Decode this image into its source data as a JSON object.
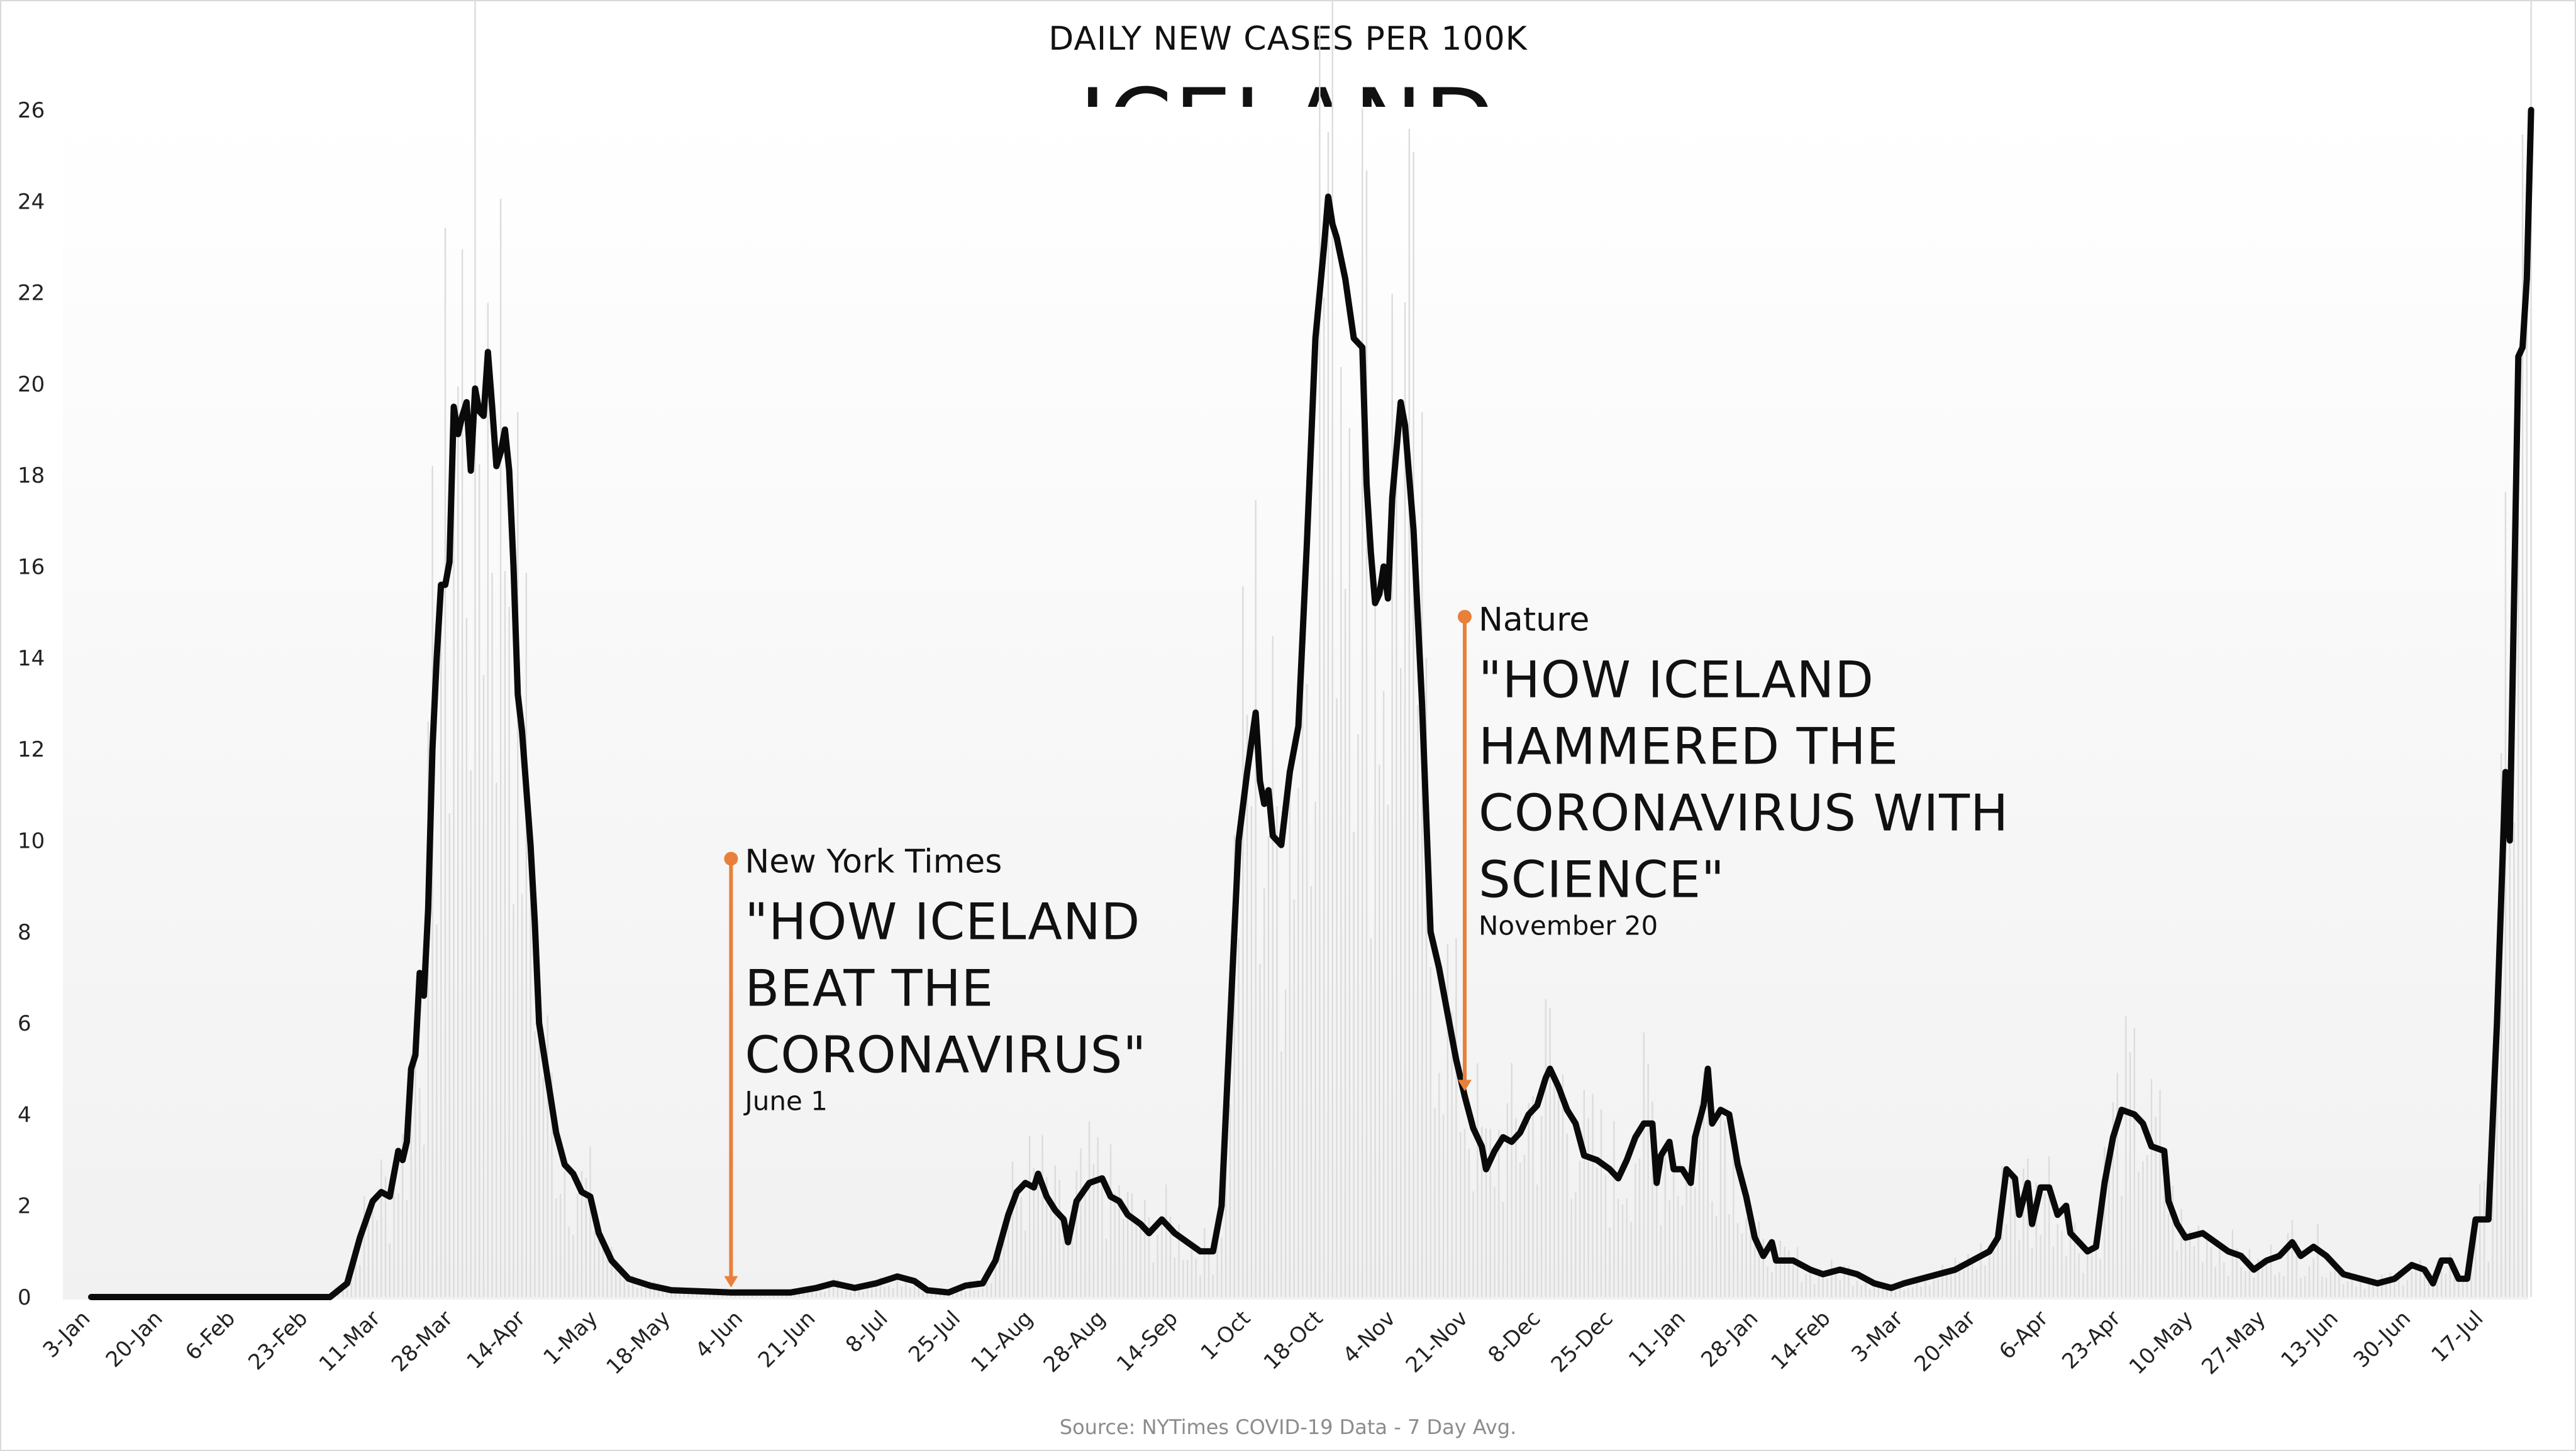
{
  "chart_data": {
    "type": "line",
    "subtitle": "DAILY NEW CASES PER 100K",
    "title": "ICELAND",
    "source": "Source: NYTimes COVID-19 Data - 7 Day Avg.",
    "ylim": [
      0,
      26
    ],
    "yticks": [
      0,
      2,
      4,
      6,
      8,
      10,
      12,
      14,
      16,
      18,
      20,
      22,
      24,
      26
    ],
    "x_tick_labels": [
      "3-Jan",
      "20-Jan",
      "6-Feb",
      "23-Feb",
      "11-Mar",
      "28-Mar",
      "14-Apr",
      "1-May",
      "18-May",
      "4-Jun",
      "21-Jun",
      "8-Jul",
      "25-Jul",
      "11-Aug",
      "28-Aug",
      "14-Sep",
      "1-Oct",
      "18-Oct",
      "4-Nov",
      "21-Nov",
      "8-Dec",
      "25-Dec",
      "11-Jan",
      "28-Jan",
      "14-Feb",
      "3-Mar",
      "20-Mar",
      "6-Apr",
      "23-Apr",
      "10-May",
      "27-May",
      "13-Jun",
      "30-Jun",
      "17-Jul"
    ],
    "x_tick_dates": [
      "2020-01-03",
      "2020-01-20",
      "2020-02-06",
      "2020-02-23",
      "2020-03-11",
      "2020-03-28",
      "2020-04-14",
      "2020-05-01",
      "2020-05-18",
      "2020-06-04",
      "2020-06-21",
      "2020-07-08",
      "2020-07-25",
      "2020-08-11",
      "2020-08-28",
      "2020-09-14",
      "2020-10-01",
      "2020-10-18",
      "2020-11-04",
      "2020-11-21",
      "2020-12-08",
      "2020-12-25",
      "2021-01-11",
      "2021-01-28",
      "2021-02-14",
      "2021-03-03",
      "2021-03-20",
      "2021-04-06",
      "2021-04-23",
      "2021-05-10",
      "2021-05-27",
      "2021-06-13",
      "2021-06-30",
      "2021-07-17"
    ],
    "grid": false,
    "series": [
      {
        "values": [
          [
            "2020-01-03",
            0
          ],
          [
            "2020-02-28",
            0
          ],
          [
            "2020-03-03",
            0.3
          ],
          [
            "2020-03-06",
            1.3
          ],
          [
            "2020-03-09",
            2.1
          ],
          [
            "2020-03-11",
            2.3
          ],
          [
            "2020-03-13",
            2.2
          ],
          [
            "2020-03-15",
            3.2
          ],
          [
            "2020-03-16",
            3.0
          ],
          [
            "2020-03-17",
            3.4
          ],
          [
            "2020-03-18",
            5.0
          ],
          [
            "2020-03-19",
            5.3
          ],
          [
            "2020-03-20",
            7.1
          ],
          [
            "2020-03-21",
            6.6
          ],
          [
            "2020-03-22",
            8.5
          ],
          [
            "2020-03-23",
            12.0
          ],
          [
            "2020-03-24",
            14.0
          ],
          [
            "2020-03-25",
            15.6
          ],
          [
            "2020-03-26",
            15.6
          ],
          [
            "2020-03-27",
            16.1
          ],
          [
            "2020-03-28",
            19.5
          ],
          [
            "2020-03-29",
            18.9
          ],
          [
            "2020-03-30",
            19.3
          ],
          [
            "2020-03-31",
            19.6
          ],
          [
            "2020-04-01",
            18.1
          ],
          [
            "2020-04-02",
            19.9
          ],
          [
            "2020-04-03",
            19.4
          ],
          [
            "2020-04-04",
            19.3
          ],
          [
            "2020-04-05",
            20.7
          ],
          [
            "2020-04-06",
            19.5
          ],
          [
            "2020-04-07",
            18.2
          ],
          [
            "2020-04-08",
            18.5
          ],
          [
            "2020-04-09",
            19.0
          ],
          [
            "2020-04-10",
            18.1
          ],
          [
            "2020-04-11",
            16.0
          ],
          [
            "2020-04-12",
            13.2
          ],
          [
            "2020-04-13",
            12.4
          ],
          [
            "2020-04-15",
            9.9
          ],
          [
            "2020-04-16",
            8.2
          ],
          [
            "2020-04-17",
            6.0
          ],
          [
            "2020-04-19",
            4.8
          ],
          [
            "2020-04-21",
            3.6
          ],
          [
            "2020-04-23",
            2.9
          ],
          [
            "2020-04-25",
            2.7
          ],
          [
            "2020-04-27",
            2.3
          ],
          [
            "2020-04-29",
            2.2
          ],
          [
            "2020-05-01",
            1.4
          ],
          [
            "2020-05-04",
            0.8
          ],
          [
            "2020-05-08",
            0.4
          ],
          [
            "2020-05-13",
            0.25
          ],
          [
            "2020-05-18",
            0.15
          ],
          [
            "2020-06-01",
            0.1
          ],
          [
            "2020-06-15",
            0.1
          ],
          [
            "2020-06-21",
            0.2
          ],
          [
            "2020-06-25",
            0.3
          ],
          [
            "2020-06-30",
            0.2
          ],
          [
            "2020-07-05",
            0.3
          ],
          [
            "2020-07-10",
            0.45
          ],
          [
            "2020-07-14",
            0.35
          ],
          [
            "2020-07-17",
            0.15
          ],
          [
            "2020-07-22",
            0.1
          ],
          [
            "2020-07-26",
            0.25
          ],
          [
            "2020-07-30",
            0.3
          ],
          [
            "2020-08-02",
            0.8
          ],
          [
            "2020-08-05",
            1.8
          ],
          [
            "2020-08-07",
            2.3
          ],
          [
            "2020-08-09",
            2.5
          ],
          [
            "2020-08-11",
            2.4
          ],
          [
            "2020-08-12",
            2.7
          ],
          [
            "2020-08-14",
            2.2
          ],
          [
            "2020-08-16",
            1.9
          ],
          [
            "2020-08-18",
            1.7
          ],
          [
            "2020-08-19",
            1.2
          ],
          [
            "2020-08-21",
            2.1
          ],
          [
            "2020-08-24",
            2.5
          ],
          [
            "2020-08-27",
            2.6
          ],
          [
            "2020-08-29",
            2.2
          ],
          [
            "2020-08-31",
            2.1
          ],
          [
            "2020-09-02",
            1.8
          ],
          [
            "2020-09-05",
            1.6
          ],
          [
            "2020-09-07",
            1.4
          ],
          [
            "2020-09-10",
            1.7
          ],
          [
            "2020-09-13",
            1.4
          ],
          [
            "2020-09-16",
            1.2
          ],
          [
            "2020-09-19",
            1.0
          ],
          [
            "2020-09-22",
            1.0
          ],
          [
            "2020-09-24",
            2.0
          ],
          [
            "2020-09-26",
            6.0
          ],
          [
            "2020-09-28",
            10.0
          ],
          [
            "2020-09-30",
            11.5
          ],
          [
            "2020-10-02",
            12.8
          ],
          [
            "2020-10-03",
            11.3
          ],
          [
            "2020-10-04",
            10.8
          ],
          [
            "2020-10-05",
            11.1
          ],
          [
            "2020-10-06",
            10.1
          ],
          [
            "2020-10-08",
            9.9
          ],
          [
            "2020-10-10",
            11.5
          ],
          [
            "2020-10-12",
            12.5
          ],
          [
            "2020-10-14",
            16.5
          ],
          [
            "2020-10-16",
            21.0
          ],
          [
            "2020-10-18",
            23.0
          ],
          [
            "2020-10-19",
            24.1
          ],
          [
            "2020-10-20",
            23.5
          ],
          [
            "2020-10-21",
            23.2
          ],
          [
            "2020-10-23",
            22.3
          ],
          [
            "2020-10-25",
            21.0
          ],
          [
            "2020-10-27",
            20.8
          ],
          [
            "2020-10-28",
            17.8
          ],
          [
            "2020-10-29",
            16.3
          ],
          [
            "2020-10-30",
            15.2
          ],
          [
            "2020-10-31",
            15.4
          ],
          [
            "2020-11-01",
            16.0
          ],
          [
            "2020-11-02",
            15.3
          ],
          [
            "2020-11-03",
            17.5
          ],
          [
            "2020-11-05",
            19.6
          ],
          [
            "2020-11-06",
            19.1
          ],
          [
            "2020-11-08",
            16.8
          ],
          [
            "2020-11-10",
            13.0
          ],
          [
            "2020-11-12",
            8.0
          ],
          [
            "2020-11-14",
            7.2
          ],
          [
            "2020-11-16",
            6.2
          ],
          [
            "2020-11-18",
            5.2
          ],
          [
            "2020-11-20",
            4.4
          ],
          [
            "2020-11-22",
            3.7
          ],
          [
            "2020-11-24",
            3.3
          ],
          [
            "2020-11-25",
            2.8
          ],
          [
            "2020-11-27",
            3.2
          ],
          [
            "2020-11-29",
            3.5
          ],
          [
            "2020-12-01",
            3.4
          ],
          [
            "2020-12-03",
            3.6
          ],
          [
            "2020-12-05",
            4.0
          ],
          [
            "2020-12-07",
            4.2
          ],
          [
            "2020-12-09",
            4.8
          ],
          [
            "2020-12-10",
            5.0
          ],
          [
            "2020-12-12",
            4.6
          ],
          [
            "2020-12-14",
            4.1
          ],
          [
            "2020-12-16",
            3.8
          ],
          [
            "2020-12-18",
            3.1
          ],
          [
            "2020-12-21",
            3.0
          ],
          [
            "2020-12-24",
            2.8
          ],
          [
            "2020-12-26",
            2.6
          ],
          [
            "2020-12-28",
            3.0
          ],
          [
            "2020-12-30",
            3.5
          ],
          [
            "2021-01-01",
            3.8
          ],
          [
            "2021-01-03",
            3.8
          ],
          [
            "2021-01-04",
            2.5
          ],
          [
            "2021-01-05",
            3.1
          ],
          [
            "2021-01-07",
            3.4
          ],
          [
            "2021-01-08",
            2.8
          ],
          [
            "2021-01-10",
            2.8
          ],
          [
            "2021-01-12",
            2.5
          ],
          [
            "2021-01-13",
            3.5
          ],
          [
            "2021-01-15",
            4.2
          ],
          [
            "2021-01-16",
            5.0
          ],
          [
            "2021-01-17",
            3.8
          ],
          [
            "2021-01-19",
            4.1
          ],
          [
            "2021-01-21",
            4.0
          ],
          [
            "2021-01-23",
            2.9
          ],
          [
            "2021-01-25",
            2.2
          ],
          [
            "2021-01-27",
            1.3
          ],
          [
            "2021-01-29",
            0.9
          ],
          [
            "2021-01-31",
            1.2
          ],
          [
            "2021-02-01",
            0.8
          ],
          [
            "2021-02-05",
            0.8
          ],
          [
            "2021-02-09",
            0.6
          ],
          [
            "2021-02-12",
            0.5
          ],
          [
            "2021-02-16",
            0.6
          ],
          [
            "2021-02-20",
            0.5
          ],
          [
            "2021-02-24",
            0.3
          ],
          [
            "2021-02-28",
            0.2
          ],
          [
            "2021-03-03",
            0.3
          ],
          [
            "2021-03-07",
            0.4
          ],
          [
            "2021-03-11",
            0.5
          ],
          [
            "2021-03-15",
            0.6
          ],
          [
            "2021-03-19",
            0.8
          ],
          [
            "2021-03-23",
            1.0
          ],
          [
            "2021-03-25",
            1.3
          ],
          [
            "2021-03-27",
            2.8
          ],
          [
            "2021-03-29",
            2.6
          ],
          [
            "2021-03-30",
            1.8
          ],
          [
            "2021-04-01",
            2.5
          ],
          [
            "2021-04-02",
            1.6
          ],
          [
            "2021-04-04",
            2.4
          ],
          [
            "2021-04-06",
            2.4
          ],
          [
            "2021-04-08",
            1.8
          ],
          [
            "2021-04-10",
            2.0
          ],
          [
            "2021-04-11",
            1.4
          ],
          [
            "2021-04-13",
            1.2
          ],
          [
            "2021-04-15",
            1.0
          ],
          [
            "2021-04-17",
            1.1
          ],
          [
            "2021-04-19",
            2.5
          ],
          [
            "2021-04-21",
            3.5
          ],
          [
            "2021-04-23",
            4.1
          ],
          [
            "2021-04-26",
            4.0
          ],
          [
            "2021-04-28",
            3.8
          ],
          [
            "2021-04-30",
            3.3
          ],
          [
            "2021-05-03",
            3.2
          ],
          [
            "2021-05-04",
            2.1
          ],
          [
            "2021-05-06",
            1.6
          ],
          [
            "2021-05-08",
            1.3
          ],
          [
            "2021-05-12",
            1.4
          ],
          [
            "2021-05-15",
            1.2
          ],
          [
            "2021-05-18",
            1.0
          ],
          [
            "2021-05-21",
            0.9
          ],
          [
            "2021-05-24",
            0.6
          ],
          [
            "2021-05-27",
            0.8
          ],
          [
            "2021-05-30",
            0.9
          ],
          [
            "2021-06-02",
            1.2
          ],
          [
            "2021-06-04",
            0.9
          ],
          [
            "2021-06-07",
            1.1
          ],
          [
            "2021-06-10",
            0.9
          ],
          [
            "2021-06-14",
            0.5
          ],
          [
            "2021-06-18",
            0.4
          ],
          [
            "2021-06-22",
            0.3
          ],
          [
            "2021-06-26",
            0.4
          ],
          [
            "2021-06-30",
            0.7
          ],
          [
            "2021-07-03",
            0.6
          ],
          [
            "2021-07-05",
            0.3
          ],
          [
            "2021-07-07",
            0.8
          ],
          [
            "2021-07-09",
            0.8
          ],
          [
            "2021-07-11",
            0.4
          ],
          [
            "2021-07-13",
            0.4
          ],
          [
            "2021-07-15",
            1.7
          ],
          [
            "2021-07-18",
            1.7
          ],
          [
            "2021-07-20",
            6.0
          ],
          [
            "2021-07-22",
            11.5
          ],
          [
            "2021-07-23",
            10.0
          ],
          [
            "2021-07-25",
            20.6
          ],
          [
            "2021-07-26",
            20.8
          ],
          [
            "2021-07-27",
            22.3
          ],
          [
            "2021-07-28",
            26.0
          ]
        ]
      }
    ],
    "annotations": [
      {
        "date": "2020-06-01",
        "source": "New York Times",
        "headline": [
          "\"HOW ICELAND",
          "BEAT THE",
          "CORONAVIRUS\""
        ],
        "date_label": "June 1",
        "start_y": 9.6,
        "color": "#E8803A"
      },
      {
        "date": "2020-11-20",
        "source": "Nature",
        "headline": [
          "\"HOW ICELAND",
          "HAMMERED THE",
          "CORONAVIRUS WITH",
          "SCIENCE\""
        ],
        "date_label": "November 20",
        "start_y": 14.9,
        "color": "#E8803A"
      }
    ]
  }
}
